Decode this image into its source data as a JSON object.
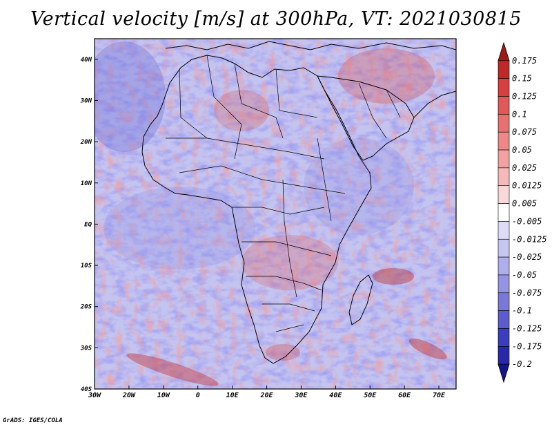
{
  "title": "Vertical velocity [m/s] at 300hPa, VT: 2021030815",
  "footer": "GrADS: IGES/COLA",
  "map": {
    "x_ticks": [
      "30W",
      "20W",
      "10W",
      "0",
      "10E",
      "20E",
      "30E",
      "40E",
      "50E",
      "60E",
      "70E"
    ],
    "y_ticks": [
      "40N",
      "30N",
      "20N",
      "10N",
      "EQ",
      "10S",
      "20S",
      "30S",
      "40S"
    ],
    "lon_range": [
      -30,
      75
    ],
    "lat_range": [
      -40,
      45
    ],
    "field": "Vertical velocity at 300hPa (m/s)"
  },
  "colorbar": {
    "labels": [
      "0.175",
      "0.15",
      "0.125",
      "0.1",
      "0.075",
      "0.05",
      "0.025",
      "0.0125",
      "0.005",
      "-0.005",
      "-0.0125",
      "-0.025",
      "-0.05",
      "-0.075",
      "-0.1",
      "-0.125",
      "-0.175",
      "-0.2"
    ],
    "colors": [
      "#a01818",
      "#c02828",
      "#d84040",
      "#e05858",
      "#e87070",
      "#ee8888",
      "#f2a0a0",
      "#f6b8b8",
      "#fad8d8",
      "#ffffff",
      "#dcdcf6",
      "#c6c6f2",
      "#aeaeec",
      "#9494e4",
      "#7878da",
      "#5c5cce",
      "#3c3cbe",
      "#2828a8",
      "#14148c"
    ]
  }
}
